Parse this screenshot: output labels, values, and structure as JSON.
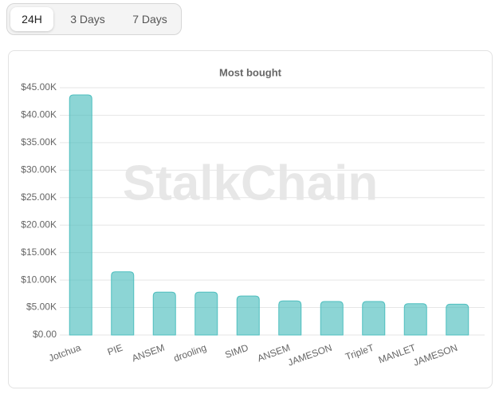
{
  "tabs": [
    "24H",
    "3 Days",
    "7 Days"
  ],
  "chart_data": {
    "type": "bar",
    "title": "Most bought",
    "watermark": "StalkChain",
    "categories": [
      "Jotchua",
      "PIE",
      "ANSEM",
      "drooling",
      "SIMD",
      "ANSEM",
      "JAMESON",
      "TripleT",
      "MANLET",
      "JAMESON"
    ],
    "values": [
      43700,
      11500,
      7800,
      7800,
      7100,
      6200,
      6100,
      6100,
      5700,
      5600
    ],
    "color": "#4ebfbf",
    "ylim": [
      0,
      45000
    ],
    "yticks": [
      {
        "value": 0,
        "label": "$0.00"
      },
      {
        "value": 5000,
        "label": "$5.00K"
      },
      {
        "value": 10000,
        "label": "$10.00K"
      },
      {
        "value": 15000,
        "label": "$15.00K"
      },
      {
        "value": 20000,
        "label": "$20.00K"
      },
      {
        "value": 25000,
        "label": "$25.00K"
      },
      {
        "value": 30000,
        "label": "$30.00K"
      },
      {
        "value": 35000,
        "label": "$35.00K"
      },
      {
        "value": 40000,
        "label": "$40.00K"
      },
      {
        "value": 45000,
        "label": "$45.00K"
      }
    ],
    "grid": true
  }
}
